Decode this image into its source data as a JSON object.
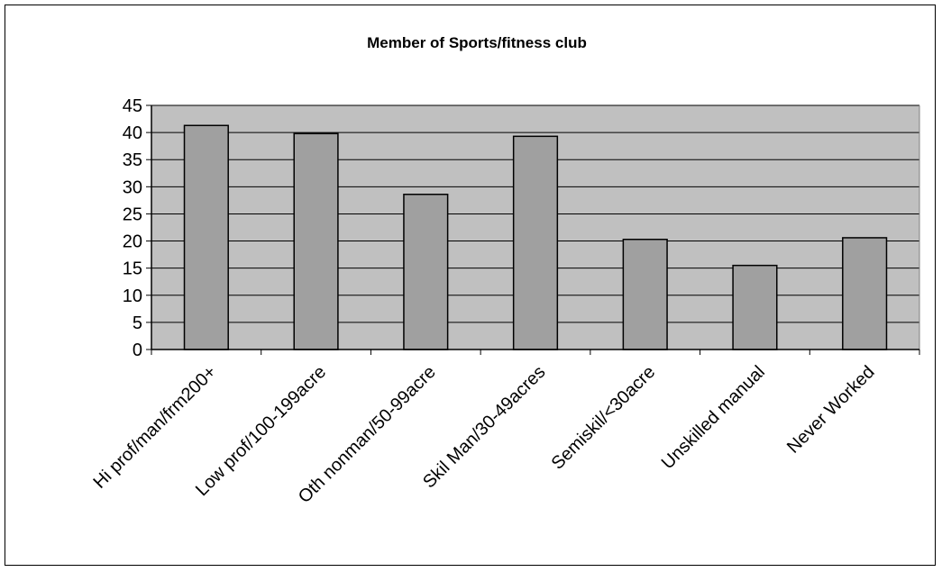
{
  "chart_data": {
    "type": "bar",
    "title": "Member of Sports/fitness club",
    "categories": [
      "Hi prof/man/frm200+",
      "Low prof/100-199acre",
      "Oth nonman/50-99acre",
      "Skil Man/30-49acres",
      "Semiskil/<30acre",
      "Unskilled manual",
      "Never Worked"
    ],
    "values": [
      41.3,
      39.8,
      28.6,
      39.3,
      20.3,
      15.5,
      20.6
    ],
    "ylim": [
      0,
      45
    ],
    "yticks": [
      "0",
      "5",
      "10",
      "15",
      "20",
      "25",
      "30",
      "35",
      "40",
      "45"
    ],
    "xlabel": "",
    "ylabel": "",
    "grid": true,
    "legend": "none",
    "colors": {
      "plot_background": "#c0c0c0",
      "bar_fill": "#a0a0a0",
      "bar_stroke": "#000000",
      "gridline": "#000000"
    }
  }
}
